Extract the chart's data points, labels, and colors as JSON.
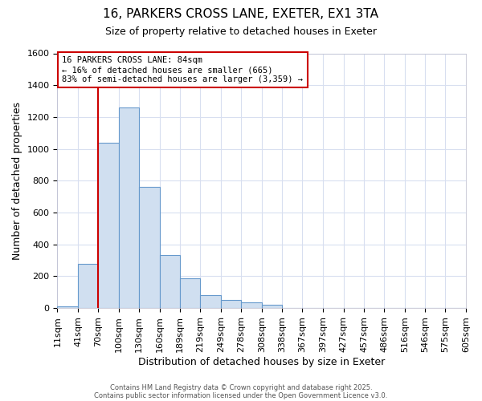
{
  "title1": "16, PARKERS CROSS LANE, EXETER, EX1 3TA",
  "title2": "Size of property relative to detached houses in Exeter",
  "xlabel": "Distribution of detached houses by size in Exeter",
  "ylabel": "Number of detached properties",
  "bins": [
    "11sqm",
    "41sqm",
    "70sqm",
    "100sqm",
    "130sqm",
    "160sqm",
    "189sqm",
    "219sqm",
    "249sqm",
    "278sqm",
    "308sqm",
    "338sqm",
    "367sqm",
    "397sqm",
    "427sqm",
    "457sqm",
    "486sqm",
    "516sqm",
    "546sqm",
    "575sqm",
    "605sqm"
  ],
  "values": [
    10,
    280,
    1040,
    1260,
    760,
    335,
    185,
    80,
    50,
    35,
    20,
    0,
    0,
    0,
    0,
    0,
    0,
    0,
    0,
    0
  ],
  "bar_color": "#d0dff0",
  "bar_edge_color": "#6699cc",
  "vline_x_bin": 2,
  "vline_color": "#cc0000",
  "annotation_text": "16 PARKERS CROSS LANE: 84sqm\n← 16% of detached houses are smaller (665)\n83% of semi-detached houses are larger (3,359) →",
  "annotation_box_color": "#ffffff",
  "annotation_box_edge": "#cc0000",
  "ylim": [
    0,
    1600
  ],
  "yticks": [
    0,
    200,
    400,
    600,
    800,
    1000,
    1200,
    1400,
    1600
  ],
  "footer1": "Contains HM Land Registry data © Crown copyright and database right 2025.",
  "footer2": "Contains public sector information licensed under the Open Government Licence v3.0.",
  "background_color": "#ffffff",
  "plot_bg_color": "#ffffff",
  "grid_color": "#d8dff0",
  "title_fontsize": 11,
  "subtitle_fontsize": 9,
  "axis_label_fontsize": 9,
  "tick_fontsize": 8
}
